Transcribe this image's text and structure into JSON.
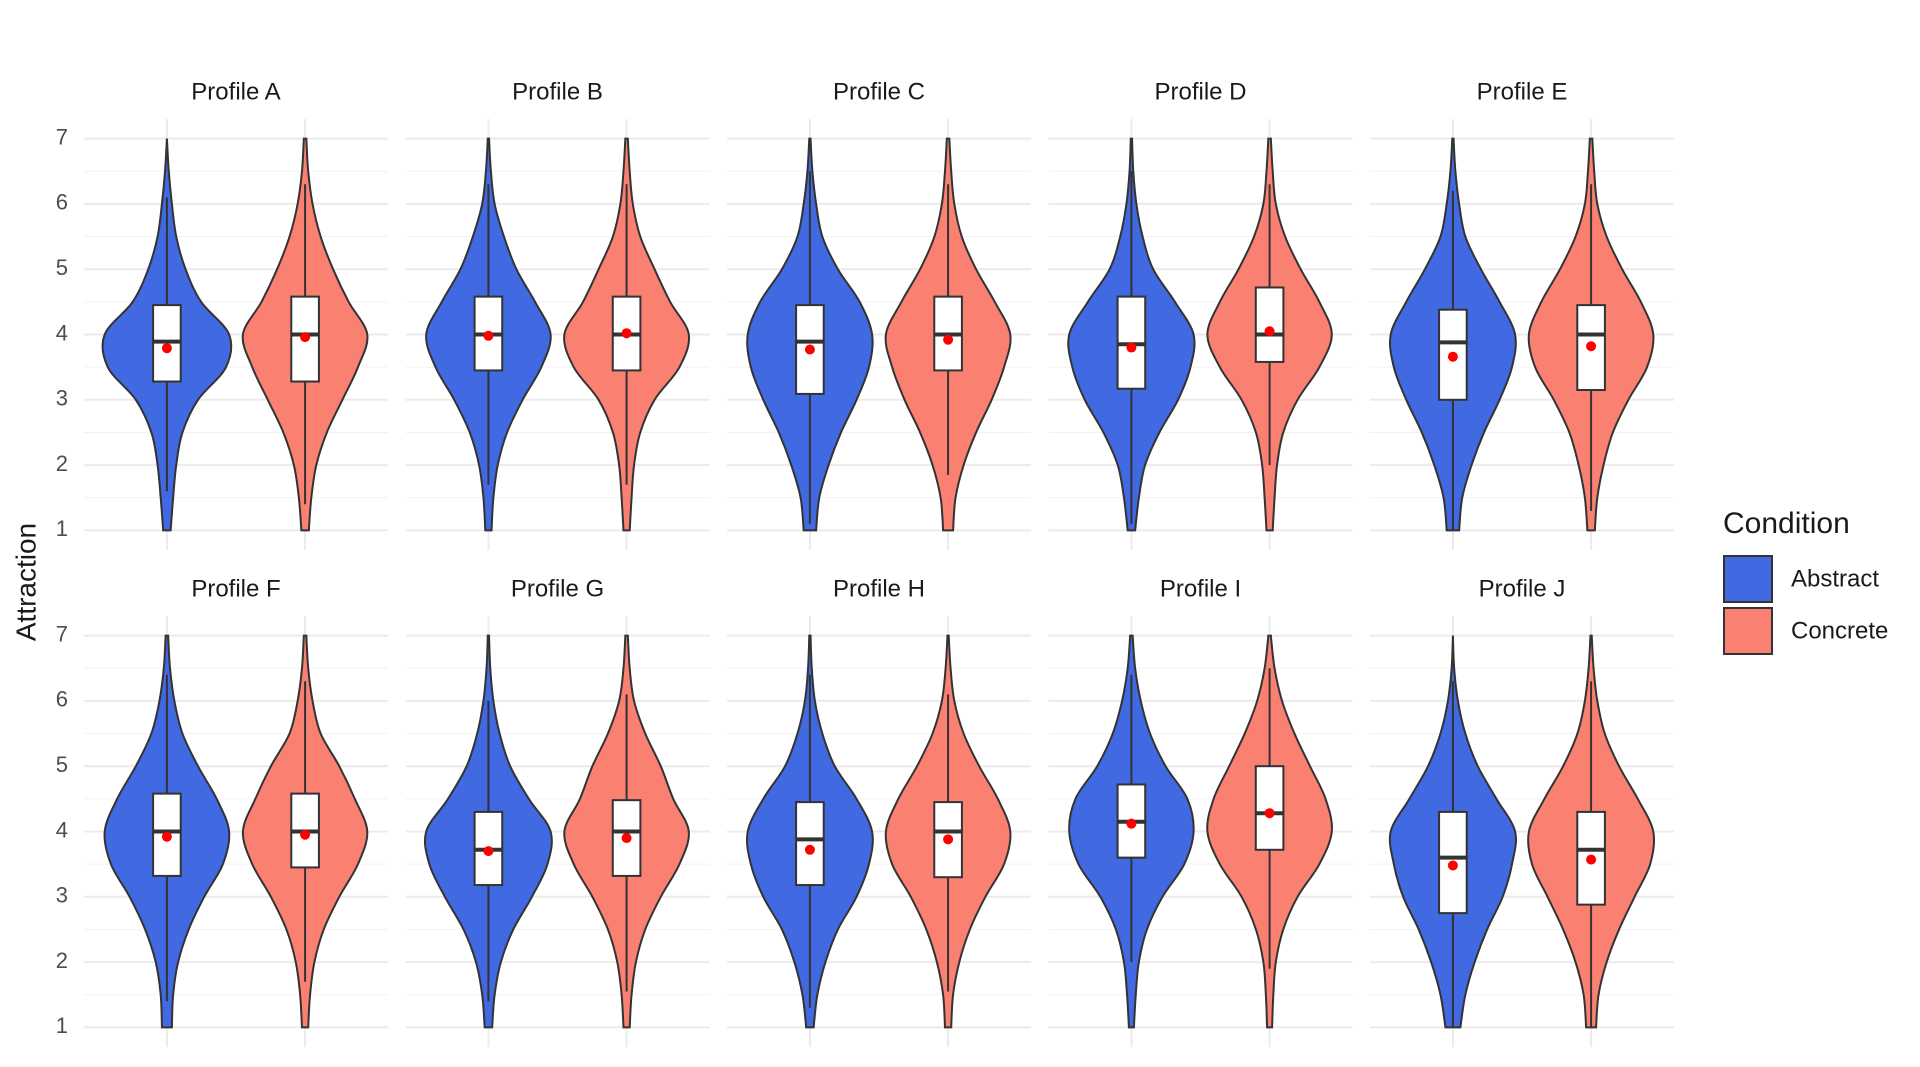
{
  "chart_data": {
    "type": "violin",
    "y_label": "Attraction",
    "legend_title": "Condition",
    "series": [
      {
        "name": "Abstract",
        "color": "#4169E1"
      },
      {
        "name": "Concrete",
        "color": "#FA8072"
      }
    ],
    "mean_color": "#FF0000",
    "ylim": [
      0.7,
      7.3
    ],
    "yticks": [
      1,
      2,
      3,
      4,
      5,
      6,
      7
    ],
    "y_minor_ticks": [
      1.5,
      2.5,
      3.5,
      4.5,
      5.5,
      6.5
    ],
    "grid": true,
    "density_y": [
      1,
      1.5,
      2,
      2.5,
      3,
      3.5,
      4,
      4.5,
      5,
      5.5,
      6,
      6.5,
      7
    ],
    "facets": [
      {
        "title": "Profile A",
        "groups": [
          {
            "q1": 3.28,
            "median": 3.89,
            "q3": 4.45,
            "whisker_low": 1.6,
            "whisker_high": 6.1,
            "mean": 3.79,
            "density": [
              0.06,
              0.1,
              0.15,
              0.25,
              0.5,
              0.95,
              1.0,
              0.55,
              0.3,
              0.15,
              0.08,
              0.03,
              0
            ]
          },
          {
            "q1": 3.28,
            "median": 4.0,
            "q3": 4.58,
            "whisker_low": 1.4,
            "whisker_high": 6.3,
            "mean": 3.96,
            "density": [
              0.06,
              0.1,
              0.18,
              0.35,
              0.6,
              0.85,
              1.0,
              0.7,
              0.45,
              0.25,
              0.12,
              0.05,
              0.02
            ]
          }
        ]
      },
      {
        "title": "Profile B",
        "groups": [
          {
            "q1": 3.45,
            "median": 4.0,
            "q3": 4.58,
            "whisker_low": 1.7,
            "whisker_high": 6.3,
            "mean": 3.98,
            "density": [
              0.05,
              0.08,
              0.15,
              0.3,
              0.55,
              0.85,
              1.0,
              0.75,
              0.45,
              0.25,
              0.1,
              0.04,
              0.01
            ]
          },
          {
            "q1": 3.45,
            "median": 4.0,
            "q3": 4.58,
            "whisker_low": 1.7,
            "whisker_high": 6.3,
            "mean": 4.02,
            "density": [
              0.05,
              0.08,
              0.12,
              0.22,
              0.45,
              0.85,
              1.0,
              0.7,
              0.45,
              0.22,
              0.1,
              0.05,
              0.02
            ]
          }
        ]
      },
      {
        "title": "Profile C",
        "groups": [
          {
            "q1": 3.09,
            "median": 3.89,
            "q3": 4.45,
            "whisker_low": 1.1,
            "whisker_high": 6.5,
            "mean": 3.77,
            "density": [
              0.1,
              0.15,
              0.3,
              0.5,
              0.75,
              0.95,
              1.0,
              0.8,
              0.45,
              0.2,
              0.1,
              0.04,
              0.01
            ]
          },
          {
            "q1": 3.45,
            "median": 4.0,
            "q3": 4.58,
            "whisker_low": 1.85,
            "whisker_high": 6.3,
            "mean": 3.92,
            "density": [
              0.08,
              0.12,
              0.25,
              0.45,
              0.7,
              0.9,
              1.0,
              0.75,
              0.45,
              0.22,
              0.1,
              0.05,
              0.02
            ]
          }
        ]
      },
      {
        "title": "Profile D",
        "groups": [
          {
            "q1": 3.17,
            "median": 3.85,
            "q3": 4.58,
            "whisker_low": 1.1,
            "whisker_high": 6.5,
            "mean": 3.8,
            "density": [
              0.06,
              0.12,
              0.22,
              0.45,
              0.75,
              0.95,
              1.0,
              0.7,
              0.35,
              0.18,
              0.08,
              0.03,
              0.01
            ]
          },
          {
            "q1": 3.58,
            "median": 4.0,
            "q3": 4.72,
            "whisker_low": 2.0,
            "whisker_high": 6.3,
            "mean": 4.05,
            "density": [
              0.05,
              0.08,
              0.12,
              0.22,
              0.45,
              0.8,
              1.0,
              0.8,
              0.5,
              0.25,
              0.1,
              0.05,
              0.02
            ]
          }
        ]
      },
      {
        "title": "Profile E",
        "groups": [
          {
            "q1": 3.0,
            "median": 3.88,
            "q3": 4.38,
            "whisker_low": 1.0,
            "whisker_high": 6.2,
            "mean": 3.66,
            "density": [
              0.1,
              0.15,
              0.3,
              0.5,
              0.75,
              0.95,
              1.0,
              0.75,
              0.45,
              0.2,
              0.1,
              0.04,
              0.01
            ]
          },
          {
            "q1": 3.15,
            "median": 4.0,
            "q3": 4.45,
            "whisker_low": 1.3,
            "whisker_high": 6.3,
            "mean": 3.82,
            "density": [
              0.06,
              0.1,
              0.2,
              0.35,
              0.6,
              0.9,
              1.0,
              0.8,
              0.5,
              0.25,
              0.1,
              0.05,
              0.02
            ]
          }
        ]
      },
      {
        "title": "Profile F",
        "groups": [
          {
            "q1": 3.32,
            "median": 4.0,
            "q3": 4.58,
            "whisker_low": 1.4,
            "whisker_high": 6.4,
            "mean": 3.92,
            "density": [
              0.08,
              0.1,
              0.18,
              0.35,
              0.6,
              0.9,
              1.0,
              0.8,
              0.5,
              0.25,
              0.12,
              0.05,
              0.02
            ]
          },
          {
            "q1": 3.45,
            "median": 4.0,
            "q3": 4.58,
            "whisker_low": 1.7,
            "whisker_high": 6.3,
            "mean": 3.95,
            "density": [
              0.05,
              0.08,
              0.15,
              0.3,
              0.55,
              0.85,
              1.0,
              0.8,
              0.55,
              0.25,
              0.12,
              0.05,
              0.02
            ]
          }
        ]
      },
      {
        "title": "Profile G",
        "groups": [
          {
            "q1": 3.18,
            "median": 3.72,
            "q3": 4.3,
            "whisker_low": 1.4,
            "whisker_high": 6.0,
            "mean": 3.7,
            "density": [
              0.06,
              0.1,
              0.2,
              0.4,
              0.7,
              0.95,
              1.0,
              0.65,
              0.35,
              0.18,
              0.08,
              0.03,
              0.01
            ]
          },
          {
            "q1": 3.32,
            "median": 4.0,
            "q3": 4.48,
            "whisker_low": 1.55,
            "whisker_high": 6.1,
            "mean": 3.9,
            "density": [
              0.05,
              0.08,
              0.15,
              0.3,
              0.55,
              0.85,
              1.0,
              0.75,
              0.55,
              0.3,
              0.12,
              0.05,
              0.02
            ]
          }
        ]
      },
      {
        "title": "Profile H",
        "groups": [
          {
            "q1": 3.18,
            "median": 3.88,
            "q3": 4.45,
            "whisker_low": 1.3,
            "whisker_high": 6.4,
            "mean": 3.72,
            "density": [
              0.06,
              0.12,
              0.25,
              0.45,
              0.75,
              0.95,
              1.0,
              0.75,
              0.4,
              0.2,
              0.08,
              0.03,
              0.01
            ]
          },
          {
            "q1": 3.3,
            "median": 4.0,
            "q3": 4.45,
            "whisker_low": 1.55,
            "whisker_high": 6.1,
            "mean": 3.88,
            "density": [
              0.05,
              0.08,
              0.18,
              0.35,
              0.6,
              0.9,
              1.0,
              0.8,
              0.5,
              0.25,
              0.1,
              0.04,
              0.01
            ]
          }
        ]
      },
      {
        "title": "Profile I",
        "groups": [
          {
            "q1": 3.6,
            "median": 4.15,
            "q3": 4.72,
            "whisker_low": 2.0,
            "whisker_high": 6.4,
            "mean": 4.12,
            "density": [
              0.04,
              0.07,
              0.12,
              0.25,
              0.5,
              0.85,
              1.0,
              0.9,
              0.55,
              0.3,
              0.15,
              0.06,
              0.02
            ]
          },
          {
            "q1": 3.72,
            "median": 4.28,
            "q3": 5.0,
            "whisker_low": 1.9,
            "whisker_high": 6.5,
            "mean": 4.28,
            "density": [
              0.04,
              0.06,
              0.1,
              0.22,
              0.45,
              0.8,
              1.0,
              0.9,
              0.65,
              0.4,
              0.2,
              0.08,
              0.02
            ]
          }
        ]
      },
      {
        "title": "Profile J",
        "groups": [
          {
            "q1": 2.75,
            "median": 3.6,
            "q3": 4.3,
            "whisker_low": 1.0,
            "whisker_high": 6.3,
            "mean": 3.48,
            "density": [
              0.12,
              0.2,
              0.35,
              0.55,
              0.8,
              0.95,
              1.0,
              0.7,
              0.4,
              0.2,
              0.08,
              0.02,
              0
            ]
          },
          {
            "q1": 2.88,
            "median": 3.72,
            "q3": 4.3,
            "whisker_low": 1.0,
            "whisker_high": 6.3,
            "mean": 3.57,
            "density": [
              0.08,
              0.12,
              0.25,
              0.45,
              0.7,
              0.95,
              1.0,
              0.75,
              0.45,
              0.22,
              0.1,
              0.04,
              0.01
            ]
          }
        ]
      }
    ]
  }
}
